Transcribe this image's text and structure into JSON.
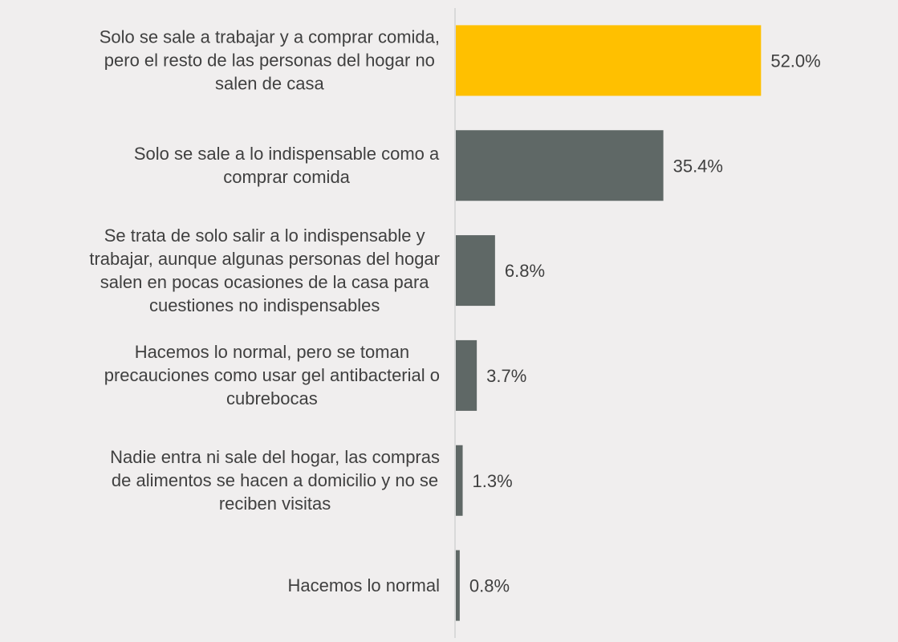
{
  "chart_data": {
    "type": "bar",
    "orientation": "horizontal",
    "grid": false,
    "legend": "none",
    "xlim": [
      0,
      60
    ],
    "categories": [
      "Solo se sale a trabajar y a comprar comida, pero el resto de las personas del hogar no salen de casa",
      "Solo se sale a lo indispensable como a comprar comida",
      "Se trata de solo salir a lo indispensable y trabajar, aunque algunas personas del hogar salen en pocas ocasiones de la casa para cuestiones no indispensables",
      "Hacemos lo normal, pero se toman precauciones como usar gel antibacterial o cubrebocas",
      "Nadie entra ni sale del hogar, las compras de alimentos se hacen a domicilio y no se reciben visitas",
      "Hacemos lo normal"
    ],
    "category_lines": [
      [
        "Solo se sale a trabajar y a comprar comida,",
        "pero el resto de las personas del hogar no",
        "salen de casa"
      ],
      [
        "Solo se sale a lo indispensable como a",
        "comprar comida"
      ],
      [
        "Se trata de solo salir a lo indispensable y",
        "trabajar, aunque algunas personas del hogar",
        "salen en pocas ocasiones de la casa para",
        "cuestiones no indispensables"
      ],
      [
        "Hacemos lo normal, pero se toman",
        "precauciones como usar gel antibacterial o",
        "cubrebocas"
      ],
      [
        "Nadie entra ni sale del hogar, las compras",
        "de alimentos se hacen a domicilio y no se",
        "reciben visitas"
      ],
      [
        "Hacemos lo normal"
      ]
    ],
    "values": [
      52.0,
      35.4,
      6.8,
      3.7,
      1.3,
      0.8
    ],
    "value_labels": [
      "52.0%",
      "35.4%",
      "6.8%",
      "3.7%",
      "1.3%",
      "0.8%"
    ],
    "colors": {
      "highlight": "#FFC000",
      "default": "#5f6866",
      "axis": "#d9d9d9",
      "text": "#404040",
      "background": "#f0eeee"
    },
    "highlight_index": 0
  }
}
